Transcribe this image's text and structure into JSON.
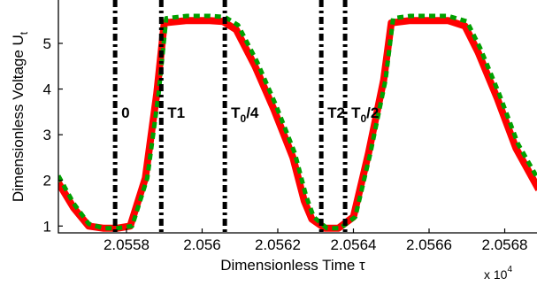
{
  "chart_data": {
    "type": "line",
    "title": "",
    "xlabel": "Dimensionless Time τ",
    "ylabel": "Dimensionless Voltage U",
    "ylabel_sub": "t",
    "x_multiplier": {
      "base": "x 10",
      "exp": "4"
    },
    "xlim": [
      20556.2,
      20568.9
    ],
    "ylim": [
      0.85,
      5.95
    ],
    "x_ticks": [
      20558,
      20560,
      20562,
      20564,
      20566,
      20568
    ],
    "x_tick_labels": [
      "2.0558",
      "2.056",
      "2.0562",
      "2.0564",
      "2.0566",
      "2.0568"
    ],
    "y_ticks": [
      1,
      2,
      3,
      4,
      5
    ],
    "y_tick_labels": [
      "1",
      "2",
      "3",
      "4",
      "5"
    ],
    "grid": false,
    "series": [
      {
        "color": "#ff0000",
        "style": "solid",
        "x": [
          20556.2,
          20556.6,
          20557.0,
          20557.4,
          20557.75,
          20558.1,
          20558.5,
          20558.8,
          20559.0,
          20559.6,
          20560.2,
          20560.55,
          20560.9,
          20561.4,
          20561.9,
          20562.4,
          20562.7,
          20562.9,
          20563.25,
          20563.6,
          20564.0,
          20564.4,
          20564.8,
          20565.0,
          20565.5,
          20566.5,
          20566.95,
          20567.3,
          20567.8,
          20568.3,
          20568.9
        ],
        "y": [
          1.95,
          1.4,
          1.0,
          0.95,
          0.95,
          1.0,
          2.05,
          3.9,
          5.45,
          5.5,
          5.5,
          5.48,
          5.3,
          4.5,
          3.55,
          2.5,
          1.55,
          1.15,
          0.95,
          0.95,
          1.2,
          2.6,
          4.2,
          5.45,
          5.5,
          5.5,
          5.38,
          4.8,
          3.8,
          2.7,
          1.8
        ]
      },
      {
        "color": "#00a000",
        "style": "dashed",
        "x": [
          20556.2,
          20556.6,
          20557.0,
          20557.4,
          20557.75,
          20558.15,
          20558.55,
          20558.85,
          20559.05,
          20559.6,
          20560.2,
          20560.6,
          20560.95,
          20561.45,
          20561.95,
          20562.45,
          20562.75,
          20562.95,
          20563.3,
          20563.65,
          20564.05,
          20564.45,
          20564.85,
          20565.05,
          20565.5,
          20566.5,
          20567.0,
          20567.35,
          20567.85,
          20568.35,
          20568.9
        ],
        "y": [
          2.1,
          1.5,
          1.05,
          0.95,
          0.95,
          1.0,
          2.05,
          3.9,
          5.55,
          5.6,
          5.6,
          5.58,
          5.4,
          4.6,
          3.65,
          2.6,
          1.65,
          1.2,
          0.95,
          0.95,
          1.2,
          2.6,
          4.2,
          5.55,
          5.6,
          5.6,
          5.48,
          4.9,
          3.9,
          2.8,
          2.0
        ]
      }
    ],
    "vertical_markers": [
      {
        "x": 20557.7,
        "label": "0"
      },
      {
        "x": 20558.92,
        "label": "T1"
      },
      {
        "x": 20560.6,
        "label": "T",
        "sub": "0",
        "suffix": "/4"
      },
      {
        "x": 20563.15,
        "label": "T2"
      },
      {
        "x": 20563.78,
        "label": "T",
        "sub": "0",
        "suffix": "/2"
      }
    ]
  }
}
